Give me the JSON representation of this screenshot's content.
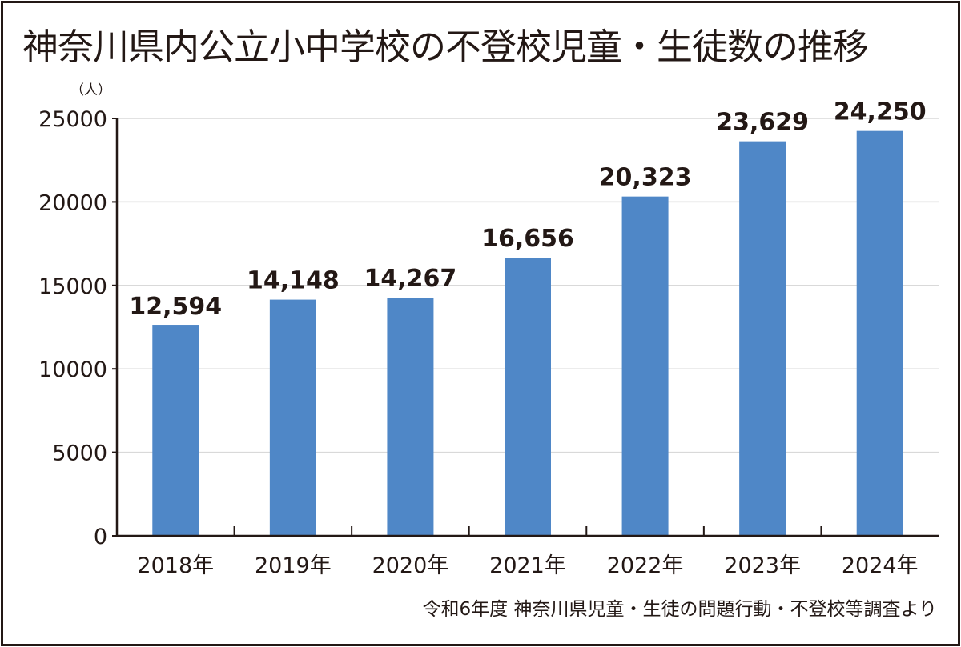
{
  "chart_data": {
    "type": "bar",
    "title": "神奈川県内公立小中学校の不登校児童・生徒数の推移",
    "ylabel": "（人）",
    "source": "令和6年度 神奈川県児童・生徒の問題行動・不登校等調査より",
    "categories": [
      "2018年",
      "2019年",
      "2020年",
      "2021年",
      "2022年",
      "2023年",
      "2024年"
    ],
    "values": [
      12594,
      14148,
      14267,
      16656,
      20323,
      23629,
      24250
    ],
    "data_labels": [
      "12,594",
      "14,148",
      "14,267",
      "16,656",
      "20,323",
      "23,629",
      "24,250"
    ],
    "ylim": [
      0,
      25000
    ],
    "yticks": [
      "0",
      "5000",
      "10000",
      "15000",
      "20000",
      "25000"
    ],
    "grid": true,
    "bar_color": "#4f87c7"
  }
}
